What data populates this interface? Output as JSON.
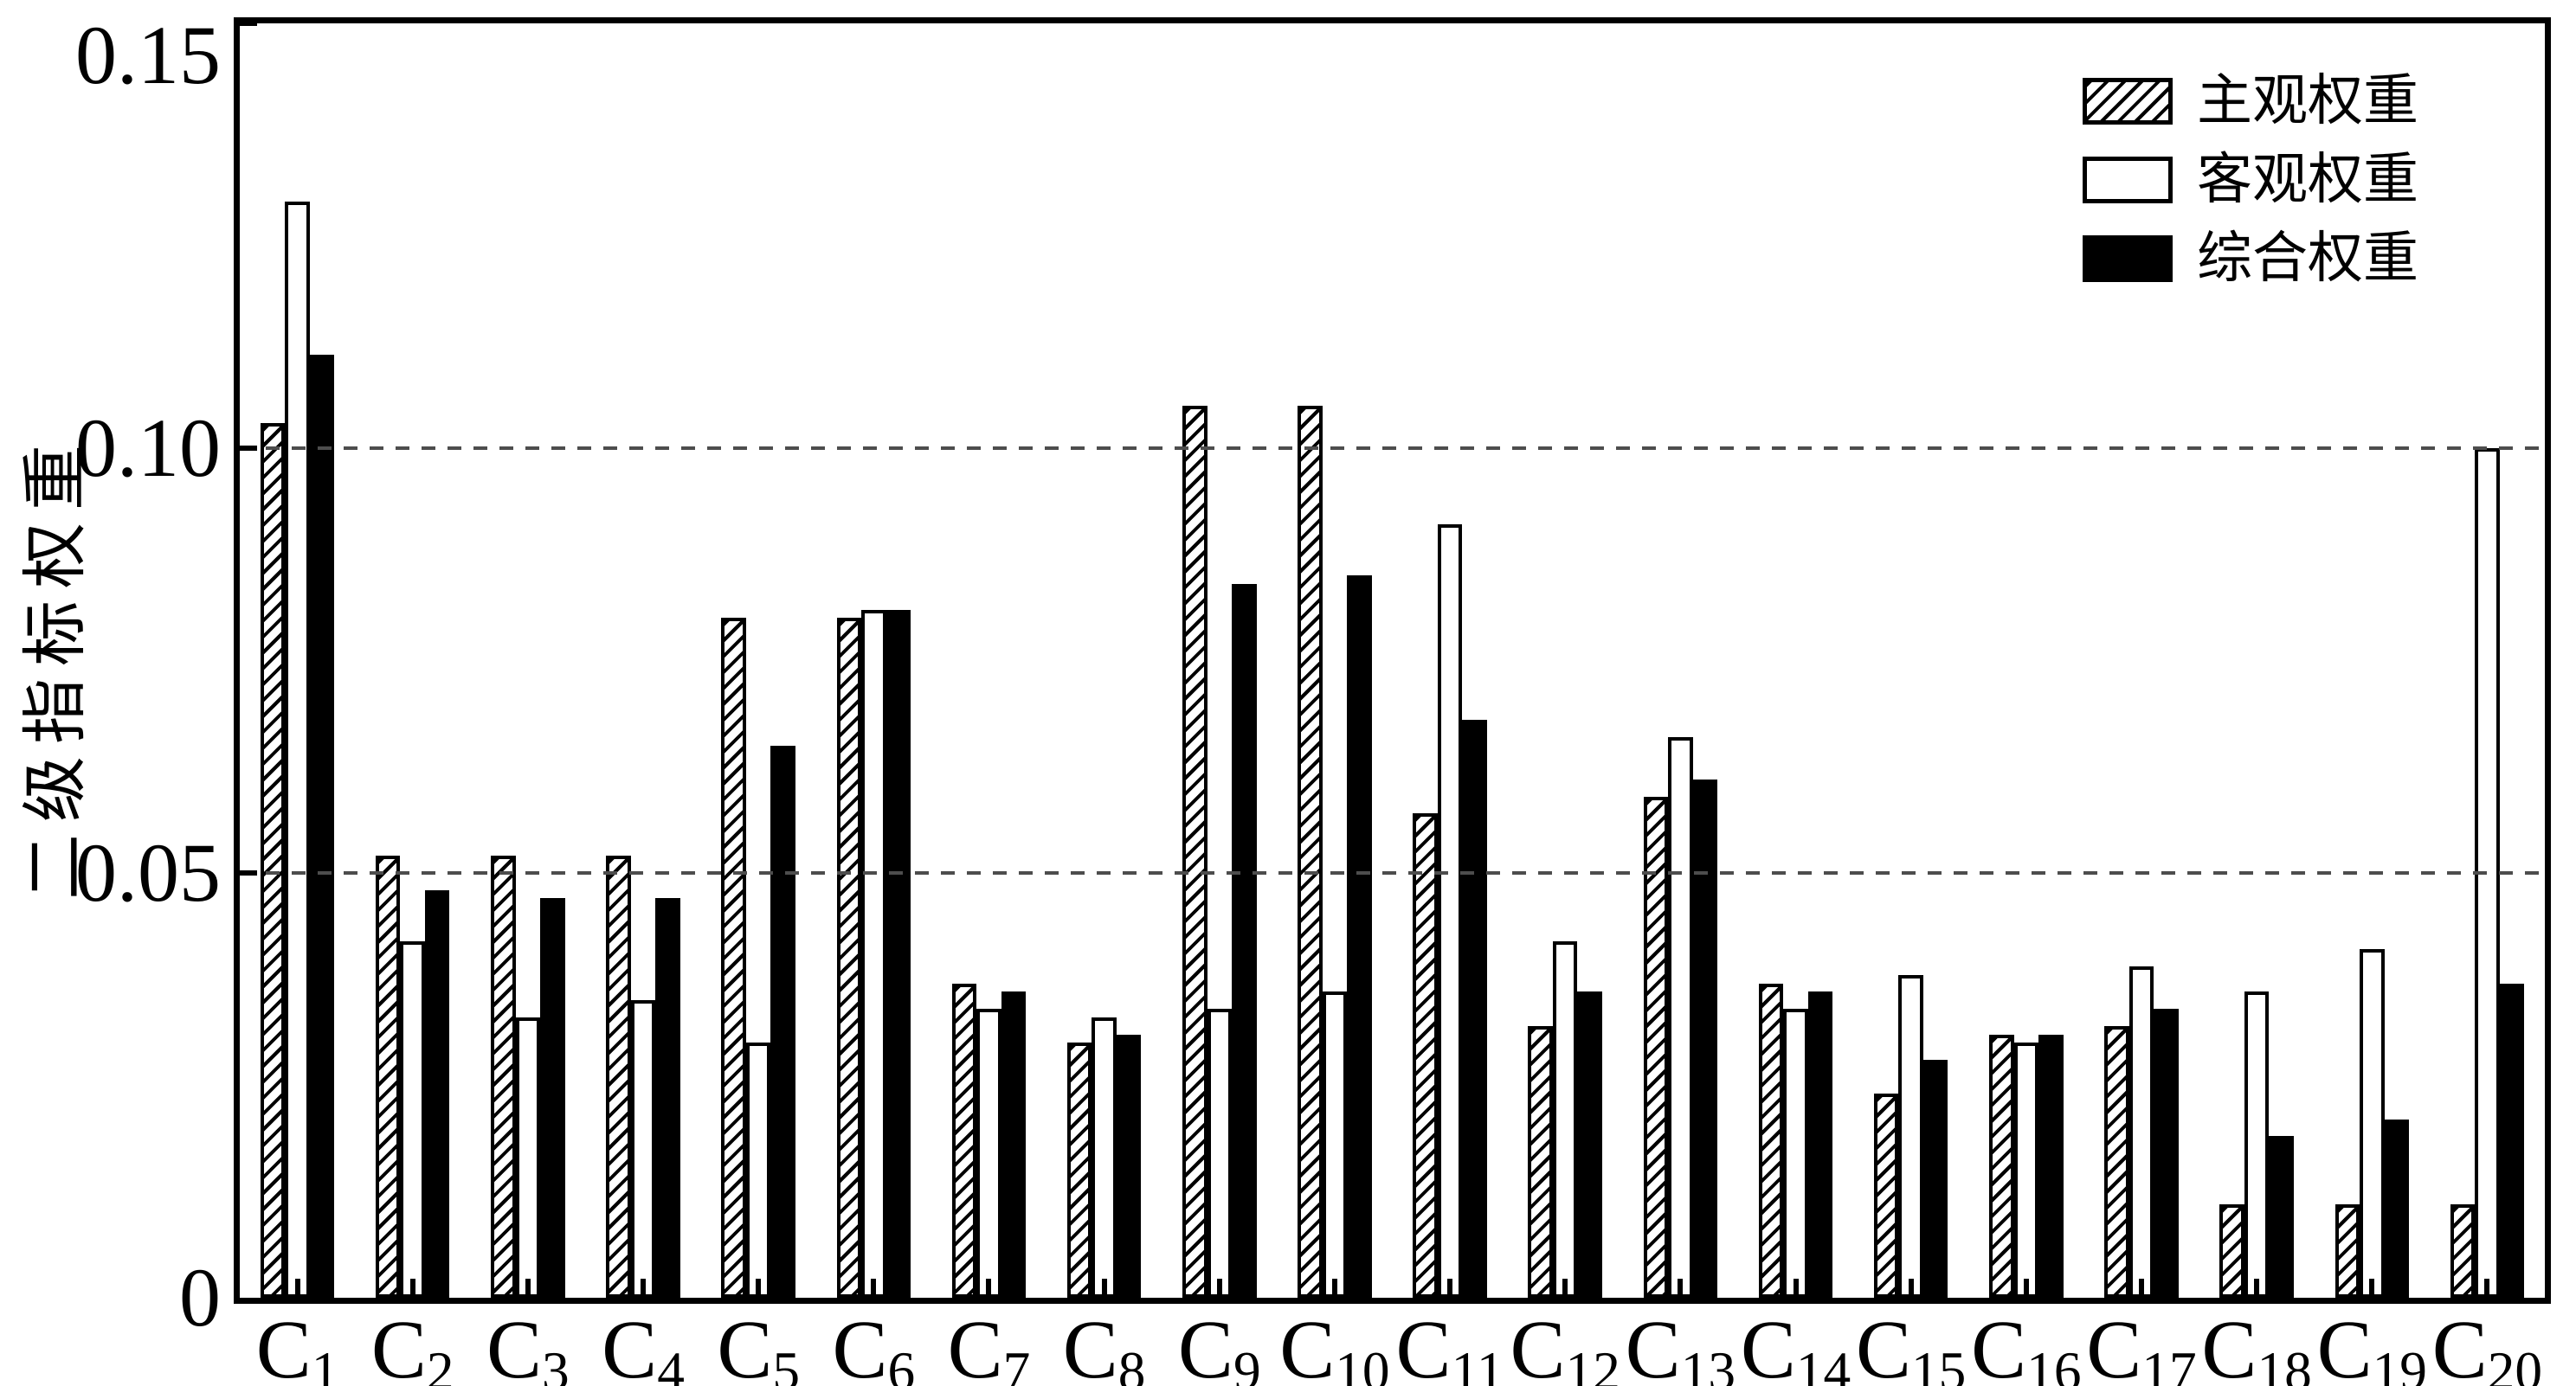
{
  "chart_data": {
    "type": "bar",
    "title": "",
    "ylabel": "二级指标权重",
    "x_category_prefix": "C",
    "categories": [
      "1",
      "2",
      "3",
      "4",
      "5",
      "6",
      "7",
      "8",
      "9",
      "10",
      "11",
      "12",
      "13",
      "14",
      "15",
      "16",
      "17",
      "18",
      "19",
      "20"
    ],
    "series": [
      {
        "name": "主观权重",
        "style": "hatched",
        "values": [
          0.103,
          0.052,
          0.052,
          0.052,
          0.08,
          0.08,
          0.037,
          0.03,
          0.105,
          0.105,
          0.057,
          0.032,
          0.059,
          0.037,
          0.024,
          0.031,
          0.032,
          0.011,
          0.011,
          0.011
        ]
      },
      {
        "name": "客观权重",
        "style": "white",
        "values": [
          0.129,
          0.042,
          0.033,
          0.035,
          0.03,
          0.081,
          0.034,
          0.033,
          0.034,
          0.036,
          0.091,
          0.042,
          0.066,
          0.034,
          0.038,
          0.03,
          0.039,
          0.036,
          0.041,
          0.1
        ]
      },
      {
        "name": "综合权重",
        "style": "black",
        "values": [
          0.111,
          0.048,
          0.047,
          0.047,
          0.065,
          0.081,
          0.036,
          0.031,
          0.084,
          0.085,
          0.068,
          0.036,
          0.061,
          0.036,
          0.028,
          0.031,
          0.034,
          0.019,
          0.021,
          0.037
        ]
      }
    ],
    "ylim": [
      0,
      0.15
    ],
    "yticks": [
      {
        "value": 0,
        "label": "0"
      },
      {
        "value": 0.05,
        "label": "0.05"
      },
      {
        "value": 0.1,
        "label": "0.10"
      },
      {
        "value": 0.15,
        "label": "0.15"
      }
    ],
    "gridlines": [
      0.05,
      0.1
    ],
    "grid_style": "dashed",
    "legend_position": "top-right-inside",
    "legend_frame": false,
    "colors": {
      "foreground": "#000000",
      "background": "#ffffff",
      "gridline": "#4d4d4d"
    }
  }
}
